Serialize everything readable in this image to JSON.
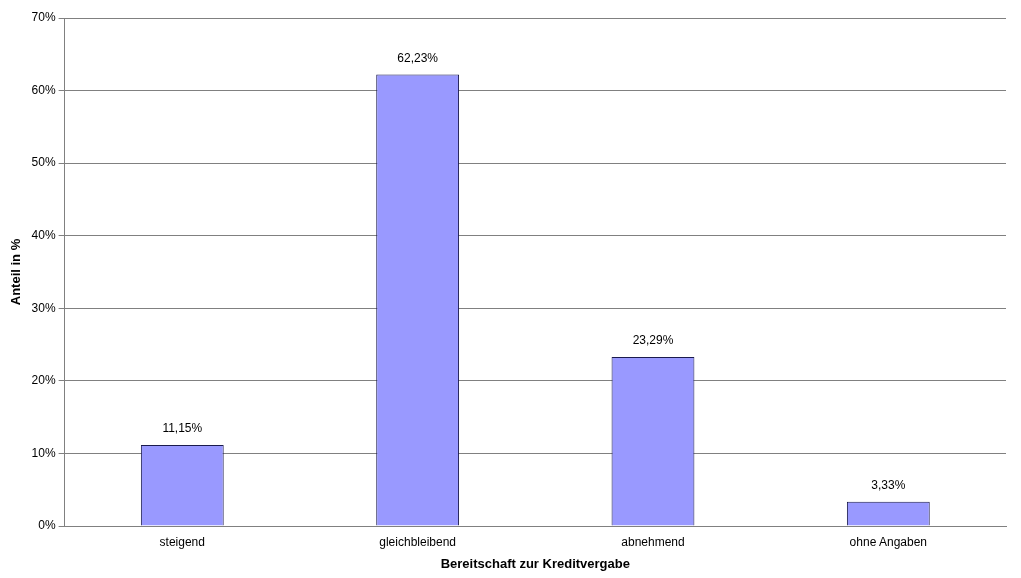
{
  "chart_data": {
    "type": "bar",
    "xlabel": "Bereitschaft zur Kreditvergabe",
    "ylabel": "Anteil in %",
    "categories": [
      "steigend",
      "gleichbleibend",
      "abnehmend",
      "ohne Angaben"
    ],
    "values": [
      11.15,
      62.23,
      23.29,
      3.33
    ],
    "value_labels": [
      "11,15%",
      "62,23%",
      "23,29%",
      "3,33%"
    ],
    "color": "#9999ff",
    "ylim": [
      0,
      70
    ],
    "yticks": [
      {
        "value": 0,
        "label": "0%"
      },
      {
        "value": 10,
        "label": "10%"
      },
      {
        "value": 20,
        "label": "20%"
      },
      {
        "value": 30,
        "label": "30%"
      },
      {
        "value": 40,
        "label": "40%"
      },
      {
        "value": 50,
        "label": "50%"
      },
      {
        "value": 60,
        "label": "60%"
      },
      {
        "value": 70,
        "label": "70%"
      }
    ],
    "grid": "y",
    "legend": false
  }
}
